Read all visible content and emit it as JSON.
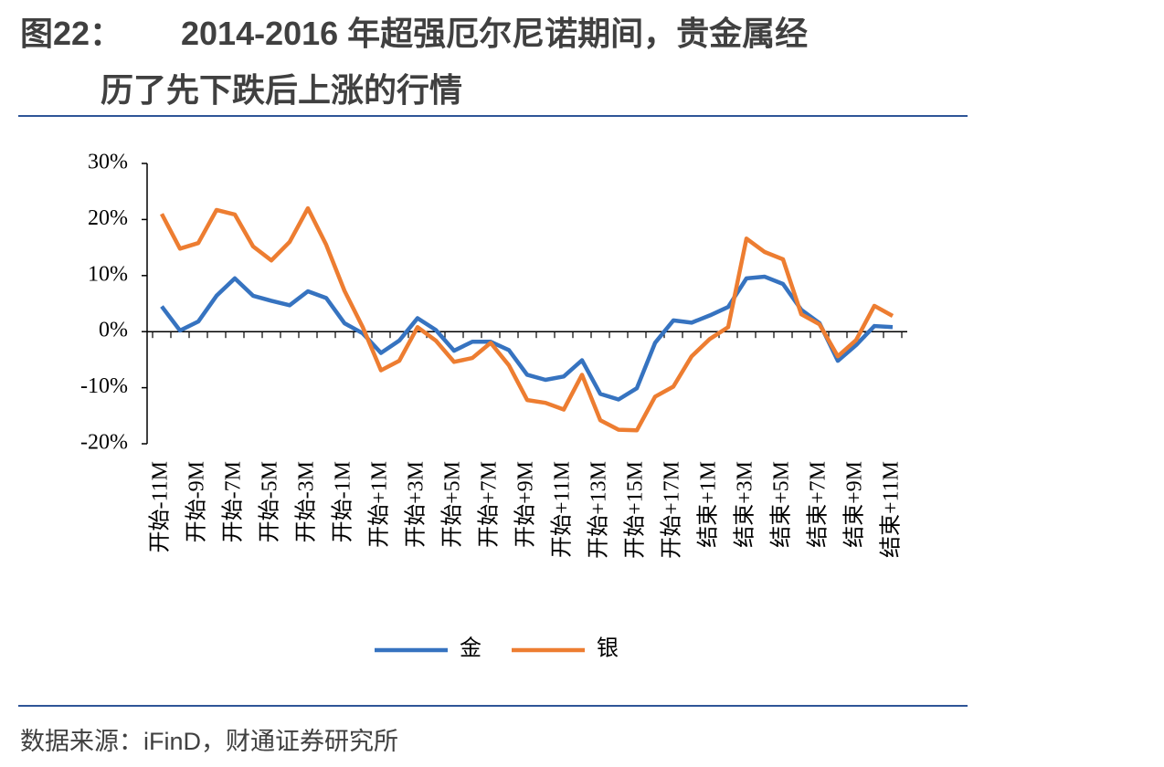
{
  "figure_label": "图22：",
  "title": [
    "2014-2016 年超强厄尔尼诺期间，贵金属经",
    "历了先下跌后上涨的行情"
  ],
  "source": "数据来源：iFinD，财通证券研究所",
  "chart_data": {
    "type": "line",
    "categories": [
      "开始-11M",
      null,
      "开始-9M",
      null,
      "开始-7M",
      null,
      "开始-5M",
      null,
      "开始-3M",
      null,
      "开始-1M",
      null,
      "开始+1M",
      null,
      "开始+3M",
      null,
      "开始+5M",
      null,
      "开始+7M",
      null,
      "开始+9M",
      null,
      "开始+11M",
      null,
      "开始+13M",
      null,
      "开始+15M",
      null,
      "开始+17M",
      null,
      "结束+1M",
      null,
      "结束+3M",
      null,
      "结束+5M",
      null,
      "结束+7M",
      null,
      "结束+9M",
      null,
      "结束+11M"
    ],
    "series": [
      {
        "name": "金",
        "color": "#3673c0",
        "values": [
          4.5,
          0.2,
          1.8,
          6.4,
          9.5,
          6.4,
          5.5,
          4.7,
          7.2,
          6.0,
          1.5,
          -0.3,
          -3.8,
          -1.6,
          2.4,
          0.3,
          -3.4,
          -1.8,
          -1.8,
          -3.3,
          -7.7,
          -8.6,
          -8.0,
          -5.1,
          -11.1,
          -12.1,
          -10.1,
          -2.0,
          2.0,
          1.6,
          2.9,
          4.4,
          9.5,
          9.8,
          8.5,
          3.9,
          1.5,
          -5.2,
          -2.4,
          1.0,
          0.8
        ]
      },
      {
        "name": "银",
        "color": "#ed7d31",
        "values": [
          21.0,
          14.8,
          15.8,
          21.7,
          20.9,
          15.2,
          12.7,
          16.0,
          22.0,
          15.5,
          7.3,
          0.8,
          -6.9,
          -5.2,
          0.8,
          -1.6,
          -5.4,
          -4.7,
          -2.0,
          -6.0,
          -12.2,
          -12.7,
          -13.9,
          -7.7,
          -15.8,
          -17.5,
          -17.6,
          -11.6,
          -9.8,
          -4.4,
          -1.3,
          0.8,
          16.6,
          14.2,
          12.9,
          3.1,
          1.3,
          -4.4,
          -1.5,
          4.6,
          2.8
        ]
      }
    ],
    "ylim": [
      -20,
      30
    ],
    "yticks": [
      {
        "value": -20,
        "label": "-20%"
      },
      {
        "value": -10,
        "label": "-10%"
      },
      {
        "value": 0,
        "label": "0%"
      },
      {
        "value": 10,
        "label": "10%"
      },
      {
        "value": 20,
        "label": "20%"
      },
      {
        "value": 30,
        "label": "30%"
      }
    ],
    "grid": false
  }
}
